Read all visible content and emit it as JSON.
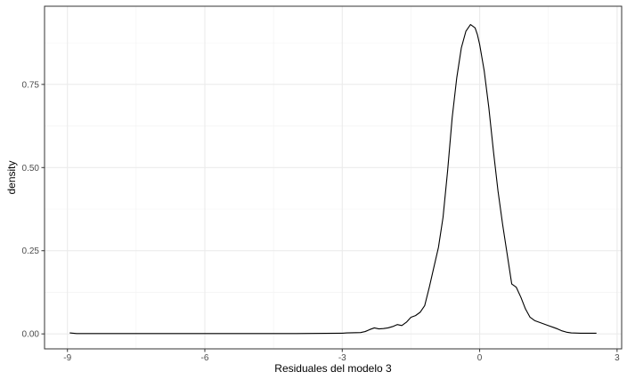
{
  "chart_data": {
    "type": "line",
    "title": "",
    "xlabel": "Residuales del modelo 3",
    "ylabel": "density",
    "xlim": [
      -9.5,
      3.1
    ],
    "ylim": [
      -0.045,
      0.985
    ],
    "x_ticks": [
      -9,
      -6,
      -3,
      0,
      3
    ],
    "x_tick_labels": [
      "-9",
      "-6",
      "-3",
      "0",
      "3"
    ],
    "y_ticks": [
      0.0,
      0.25,
      0.5,
      0.75
    ],
    "y_tick_labels": [
      "0.00",
      "0.25",
      "0.50",
      "0.75"
    ],
    "grid": true,
    "legend": "none",
    "series": [
      {
        "color": "#000000",
        "x": [
          -8.95,
          -8.8,
          -8.0,
          -7.0,
          -6.0,
          -5.0,
          -4.0,
          -3.0,
          -2.9,
          -2.6,
          -2.5,
          -2.4,
          -2.3,
          -2.2,
          -2.1,
          -2.0,
          -1.9,
          -1.8,
          -1.7,
          -1.6,
          -1.5,
          -1.4,
          -1.3,
          -1.2,
          -1.1,
          -1.0,
          -0.9,
          -0.8,
          -0.7,
          -0.6,
          -0.5,
          -0.4,
          -0.3,
          -0.2,
          -0.1,
          -0.05,
          0.0,
          0.05,
          0.1,
          0.2,
          0.3,
          0.4,
          0.5,
          0.6,
          0.7,
          0.8,
          0.9,
          1.0,
          1.1,
          1.2,
          1.3,
          1.4,
          1.5,
          1.6,
          1.7,
          1.8,
          1.9,
          2.0,
          2.2,
          2.4,
          2.55
        ],
        "y": [
          0.003,
          0.001,
          0.001,
          0.001,
          0.001,
          0.001,
          0.001,
          0.002,
          0.003,
          0.004,
          0.007,
          0.013,
          0.018,
          0.015,
          0.016,
          0.018,
          0.022,
          0.028,
          0.025,
          0.035,
          0.05,
          0.055,
          0.065,
          0.085,
          0.14,
          0.2,
          0.26,
          0.35,
          0.49,
          0.65,
          0.77,
          0.86,
          0.91,
          0.93,
          0.92,
          0.9,
          0.87,
          0.83,
          0.79,
          0.68,
          0.55,
          0.43,
          0.33,
          0.24,
          0.15,
          0.14,
          0.11,
          0.075,
          0.05,
          0.04,
          0.035,
          0.03,
          0.025,
          0.02,
          0.015,
          0.009,
          0.005,
          0.003,
          0.002,
          0.002,
          0.002
        ]
      }
    ]
  }
}
